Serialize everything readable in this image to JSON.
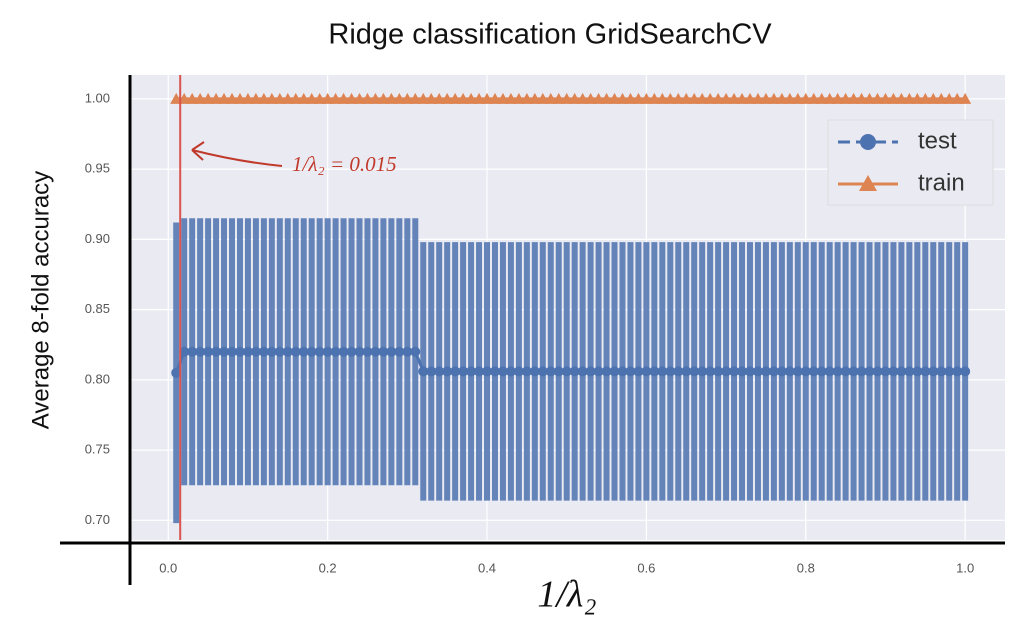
{
  "chart_data": {
    "type": "errorbar",
    "title": "Ridge classification GridSearchCV",
    "x_label": "1/λ₂",
    "y_label": "Average 8-fold accuracy",
    "xlim": [
      -0.048,
      1.05
    ],
    "ylim": [
      0.686,
      1.017
    ],
    "xticks": [
      {
        "value": 0,
        "label": "0.0"
      },
      0.2,
      0.4,
      0.6,
      0.8,
      {
        "value": 1,
        "label": "1.0"
      }
    ],
    "yticks": [
      {
        "value": 0.7,
        "label": "0.70"
      },
      0.75,
      {
        "value": 0.8,
        "label": "0.80"
      },
      0.85,
      {
        "value": 0.9,
        "label": "0.90"
      },
      0.95,
      {
        "value": 1,
        "label": "1.00"
      }
    ],
    "grid": true,
    "legend": "upper right",
    "x": [
      0.01,
      0.02,
      0.03,
      0.04,
      0.05,
      0.06,
      0.07,
      0.08,
      0.09,
      0.1,
      0.11,
      0.12,
      0.13,
      0.14,
      0.15,
      0.16,
      0.17,
      0.18,
      0.19,
      0.2,
      0.21,
      0.22,
      0.23,
      0.24,
      0.25,
      0.26,
      0.27,
      0.28,
      0.29,
      0.3,
      0.31,
      0.32,
      0.33,
      0.34,
      0.35,
      0.36,
      0.37,
      0.38,
      0.39,
      0.4,
      0.41,
      0.42,
      0.43,
      0.44,
      0.45,
      0.46,
      0.47,
      0.48,
      0.49,
      0.5,
      0.51,
      0.52,
      0.53,
      0.54,
      0.55,
      0.56,
      0.57,
      0.58,
      0.59,
      0.6,
      0.61,
      0.62,
      0.63,
      0.64,
      0.65,
      0.66,
      0.67,
      0.68,
      0.69,
      0.7,
      0.71,
      0.72,
      0.73,
      0.74,
      0.75,
      0.76,
      0.77,
      0.78,
      0.79,
      0.8,
      0.81,
      0.82,
      0.83,
      0.84,
      0.85,
      0.86,
      0.87,
      0.88,
      0.89,
      0.9,
      0.91,
      0.92,
      0.93,
      0.94,
      0.95,
      0.96,
      0.97,
      0.98,
      0.99,
      1.0
    ],
    "series": [
      {
        "name": "test",
        "color": "#4c72b0",
        "marker": "circle",
        "dashed": true,
        "values": [
          0.805,
          0.82,
          0.82,
          0.82,
          0.82,
          0.82,
          0.82,
          0.82,
          0.82,
          0.82,
          0.82,
          0.82,
          0.82,
          0.82,
          0.82,
          0.82,
          0.82,
          0.82,
          0.82,
          0.82,
          0.82,
          0.82,
          0.82,
          0.82,
          0.82,
          0.82,
          0.82,
          0.82,
          0.82,
          0.82,
          0.82,
          0.806,
          0.806,
          0.806,
          0.806,
          0.806,
          0.806,
          0.806,
          0.806,
          0.806,
          0.806,
          0.806,
          0.806,
          0.806,
          0.806,
          0.806,
          0.806,
          0.806,
          0.806,
          0.806,
          0.806,
          0.806,
          0.806,
          0.806,
          0.806,
          0.806,
          0.806,
          0.806,
          0.806,
          0.806,
          0.806,
          0.806,
          0.806,
          0.806,
          0.806,
          0.806,
          0.806,
          0.806,
          0.806,
          0.806,
          0.806,
          0.806,
          0.806,
          0.806,
          0.806,
          0.806,
          0.806,
          0.806,
          0.806,
          0.806,
          0.806,
          0.806,
          0.806,
          0.806,
          0.806,
          0.806,
          0.806,
          0.806,
          0.806,
          0.806,
          0.806,
          0.806,
          0.806,
          0.806,
          0.806,
          0.806,
          0.806,
          0.806,
          0.806,
          0.806
        ],
        "errors": [
          0.107,
          0.095,
          0.095,
          0.095,
          0.095,
          0.095,
          0.095,
          0.095,
          0.095,
          0.095,
          0.095,
          0.095,
          0.095,
          0.095,
          0.095,
          0.095,
          0.095,
          0.095,
          0.095,
          0.095,
          0.095,
          0.095,
          0.095,
          0.095,
          0.095,
          0.095,
          0.095,
          0.095,
          0.095,
          0.095,
          0.095,
          0.092,
          0.092,
          0.092,
          0.092,
          0.092,
          0.092,
          0.092,
          0.092,
          0.092,
          0.092,
          0.092,
          0.092,
          0.092,
          0.092,
          0.092,
          0.092,
          0.092,
          0.092,
          0.092,
          0.092,
          0.092,
          0.092,
          0.092,
          0.092,
          0.092,
          0.092,
          0.092,
          0.092,
          0.092,
          0.092,
          0.092,
          0.092,
          0.092,
          0.092,
          0.092,
          0.092,
          0.092,
          0.092,
          0.092,
          0.092,
          0.092,
          0.092,
          0.092,
          0.092,
          0.092,
          0.092,
          0.092,
          0.092,
          0.092,
          0.092,
          0.092,
          0.092,
          0.092,
          0.092,
          0.092,
          0.092,
          0.092,
          0.092,
          0.092,
          0.092,
          0.092,
          0.092,
          0.092,
          0.092,
          0.092,
          0.092,
          0.092,
          0.092,
          0.092
        ]
      },
      {
        "name": "train",
        "color": "#dd8452",
        "marker": "triangle",
        "dashed": false,
        "values": [
          1,
          1,
          1,
          1,
          1,
          1,
          1,
          1,
          1,
          1,
          1,
          1,
          1,
          1,
          1,
          1,
          1,
          1,
          1,
          1,
          1,
          1,
          1,
          1,
          1,
          1,
          1,
          1,
          1,
          1,
          1,
          1,
          1,
          1,
          1,
          1,
          1,
          1,
          1,
          1,
          1,
          1,
          1,
          1,
          1,
          1,
          1,
          1,
          1,
          1,
          1,
          1,
          1,
          1,
          1,
          1,
          1,
          1,
          1,
          1,
          1,
          1,
          1,
          1,
          1,
          1,
          1,
          1,
          1,
          1,
          1,
          1,
          1,
          1,
          1,
          1,
          1,
          1,
          1,
          1,
          1,
          1,
          1,
          1,
          1,
          1,
          1,
          1,
          1,
          1,
          1,
          1,
          1,
          1,
          1,
          1,
          1,
          1,
          1,
          1
        ]
      }
    ],
    "vline": {
      "x": 0.015,
      "color": "#d9534f"
    },
    "annotation": {
      "text": "1/λ₂ = 0.015",
      "color": "#c0392b"
    }
  }
}
